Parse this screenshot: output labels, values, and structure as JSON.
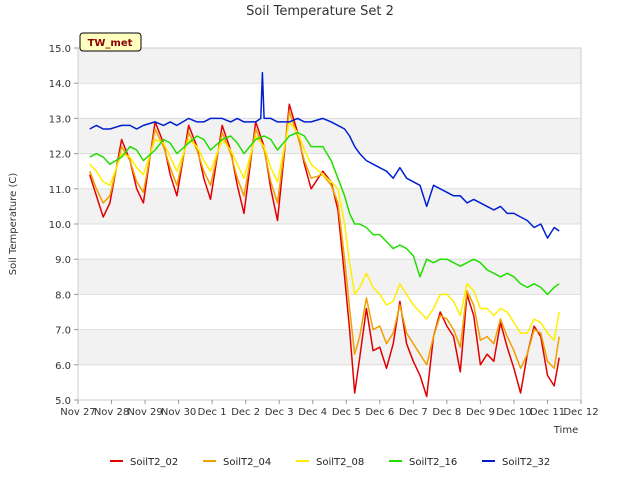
{
  "chart_data": {
    "type": "line",
    "title": "Soil Temperature Set 2",
    "xlabel": "Time",
    "ylabel": "Soil Temperature (C)",
    "station_badge": "TW_met",
    "ylim": [
      5.0,
      15.0
    ],
    "yticks": [
      "5.0",
      "6.0",
      "7.0",
      "8.0",
      "9.0",
      "10.0",
      "11.0",
      "12.0",
      "13.0",
      "14.0",
      "15.0"
    ],
    "xlim": [
      0,
      15
    ],
    "xticks": [
      "Nov 27",
      "Nov 28",
      "Nov 29",
      "Nov 30",
      "Dec 1",
      "Dec 2",
      "Dec 3",
      "Dec 4",
      "Dec 5",
      "Dec 6",
      "Dec 7",
      "Dec 8",
      "Dec 9",
      "Dec 10",
      "Dec 11",
      "Dec 12"
    ],
    "grid": "horizontal bands",
    "legend_position": "bottom",
    "series": [
      {
        "name": "SoilT2_02",
        "color": "#e00000",
        "x": [
          0.35,
          0.55,
          0.75,
          0.95,
          1.3,
          1.55,
          1.75,
          1.95,
          2.3,
          2.55,
          2.75,
          2.95,
          3.3,
          3.55,
          3.75,
          3.95,
          4.3,
          4.55,
          4.75,
          4.95,
          5.3,
          5.55,
          5.75,
          5.95,
          6.3,
          6.55,
          6.75,
          6.95,
          7.3,
          7.55,
          7.75,
          7.95,
          8.1,
          8.25,
          8.4,
          8.6,
          8.8,
          9.0,
          9.2,
          9.4,
          9.6,
          9.8,
          10.0,
          10.2,
          10.4,
          10.6,
          10.8,
          11.0,
          11.2,
          11.4,
          11.6,
          11.8,
          12.0,
          12.2,
          12.4,
          12.6,
          12.8,
          13.0,
          13.2,
          13.4,
          13.6,
          13.8,
          14.0,
          14.2,
          14.35
        ],
        "y": [
          11.4,
          10.8,
          10.2,
          10.6,
          12.4,
          11.8,
          11.0,
          10.6,
          12.9,
          12.3,
          11.4,
          10.8,
          12.8,
          12.2,
          11.3,
          10.7,
          12.8,
          12.1,
          11.1,
          10.3,
          12.9,
          12.2,
          11.0,
          10.1,
          13.4,
          12.6,
          11.7,
          11.0,
          11.5,
          11.2,
          10.4,
          8.5,
          7.0,
          5.2,
          6.2,
          7.6,
          6.4,
          6.5,
          5.9,
          6.6,
          7.8,
          6.6,
          6.1,
          5.7,
          5.1,
          6.8,
          7.5,
          7.1,
          6.8,
          5.8,
          8.0,
          7.4,
          6.0,
          6.3,
          6.1,
          7.2,
          6.5,
          5.9,
          5.2,
          6.3,
          7.1,
          6.8,
          5.7,
          5.4,
          6.2
        ]
      },
      {
        "name": "SoilT2_04",
        "color": "#f0a000",
        "x": [
          0.35,
          0.55,
          0.75,
          0.95,
          1.3,
          1.55,
          1.75,
          1.95,
          2.3,
          2.55,
          2.75,
          2.95,
          3.3,
          3.55,
          3.75,
          3.95,
          4.3,
          4.55,
          4.75,
          4.95,
          5.3,
          5.55,
          5.75,
          5.95,
          6.3,
          6.55,
          6.75,
          6.95,
          7.3,
          7.55,
          7.75,
          7.95,
          8.1,
          8.25,
          8.4,
          8.6,
          8.8,
          9.0,
          9.2,
          9.4,
          9.6,
          9.8,
          10.0,
          10.2,
          10.4,
          10.6,
          10.8,
          11.0,
          11.2,
          11.4,
          11.6,
          11.8,
          12.0,
          12.2,
          12.4,
          12.6,
          12.8,
          13.0,
          13.2,
          13.4,
          13.6,
          13.8,
          14.0,
          14.2,
          14.35
        ],
        "y": [
          11.5,
          11.0,
          10.6,
          10.8,
          12.2,
          11.8,
          11.2,
          10.9,
          12.7,
          12.2,
          11.6,
          11.1,
          12.6,
          12.1,
          11.5,
          11.1,
          12.6,
          12.0,
          11.3,
          10.8,
          12.7,
          12.1,
          11.2,
          10.6,
          13.2,
          12.5,
          11.8,
          11.3,
          11.4,
          11.1,
          10.6,
          9.0,
          7.6,
          6.3,
          6.8,
          7.9,
          7.0,
          7.1,
          6.6,
          6.9,
          7.7,
          6.9,
          6.6,
          6.3,
          6.0,
          6.8,
          7.4,
          7.3,
          7.0,
          6.5,
          8.1,
          7.7,
          6.7,
          6.8,
          6.6,
          7.3,
          6.8,
          6.4,
          5.9,
          6.3,
          7.0,
          6.9,
          6.1,
          5.9,
          6.8
        ]
      },
      {
        "name": "SoilT2_08",
        "color": "#ffee00",
        "x": [
          0.35,
          0.55,
          0.75,
          0.95,
          1.3,
          1.55,
          1.75,
          1.95,
          2.3,
          2.55,
          2.75,
          2.95,
          3.3,
          3.55,
          3.75,
          3.95,
          4.3,
          4.55,
          4.75,
          4.95,
          5.3,
          5.55,
          5.75,
          5.95,
          6.3,
          6.55,
          6.75,
          6.95,
          7.3,
          7.55,
          7.75,
          7.95,
          8.1,
          8.25,
          8.4,
          8.6,
          8.8,
          9.0,
          9.2,
          9.4,
          9.6,
          9.8,
          10.0,
          10.2,
          10.4,
          10.6,
          10.8,
          11.0,
          11.2,
          11.4,
          11.6,
          11.8,
          12.0,
          12.2,
          12.4,
          12.6,
          12.8,
          13.0,
          13.2,
          13.4,
          13.6,
          13.8,
          14.0,
          14.2,
          14.35
        ],
        "y": [
          11.7,
          11.5,
          11.2,
          11.1,
          12.0,
          11.9,
          11.6,
          11.4,
          12.4,
          12.3,
          11.9,
          11.5,
          12.4,
          12.2,
          11.8,
          11.5,
          12.4,
          12.1,
          11.7,
          11.3,
          12.5,
          12.2,
          11.6,
          11.2,
          12.9,
          12.6,
          12.1,
          11.7,
          11.4,
          11.2,
          11.0,
          10.0,
          8.9,
          8.0,
          8.2,
          8.6,
          8.2,
          8.0,
          7.7,
          7.8,
          8.3,
          8.0,
          7.7,
          7.5,
          7.3,
          7.6,
          8.0,
          8.0,
          7.8,
          7.4,
          8.3,
          8.1,
          7.6,
          7.6,
          7.4,
          7.6,
          7.5,
          7.2,
          6.9,
          6.9,
          7.3,
          7.2,
          6.9,
          6.7,
          7.5
        ]
      },
      {
        "name": "SoilT2_16",
        "color": "#22dd00",
        "x": [
          0.35,
          0.55,
          0.75,
          0.95,
          1.3,
          1.55,
          1.75,
          1.95,
          2.3,
          2.55,
          2.75,
          2.95,
          3.3,
          3.55,
          3.75,
          3.95,
          4.3,
          4.55,
          4.75,
          4.95,
          5.3,
          5.55,
          5.75,
          5.95,
          6.3,
          6.55,
          6.75,
          6.95,
          7.3,
          7.55,
          7.75,
          7.95,
          8.1,
          8.25,
          8.4,
          8.6,
          8.8,
          9.0,
          9.2,
          9.4,
          9.6,
          9.8,
          10.0,
          10.2,
          10.4,
          10.6,
          10.8,
          11.0,
          11.2,
          11.4,
          11.6,
          11.8,
          12.0,
          12.2,
          12.4,
          12.6,
          12.8,
          13.0,
          13.2,
          13.4,
          13.6,
          13.8,
          14.0,
          14.2,
          14.35
        ],
        "y": [
          11.9,
          12.0,
          11.9,
          11.7,
          11.9,
          12.2,
          12.1,
          11.8,
          12.1,
          12.4,
          12.3,
          12.0,
          12.3,
          12.5,
          12.4,
          12.1,
          12.4,
          12.5,
          12.3,
          12.0,
          12.4,
          12.5,
          12.4,
          12.1,
          12.5,
          12.6,
          12.5,
          12.2,
          12.2,
          11.8,
          11.3,
          10.8,
          10.3,
          10.0,
          10.0,
          9.9,
          9.7,
          9.7,
          9.5,
          9.3,
          9.4,
          9.3,
          9.1,
          8.5,
          9.0,
          8.9,
          9.0,
          9.0,
          8.9,
          8.8,
          8.9,
          9.0,
          8.9,
          8.7,
          8.6,
          8.5,
          8.6,
          8.5,
          8.3,
          8.2,
          8.3,
          8.2,
          8.0,
          8.2,
          8.3
        ]
      },
      {
        "name": "SoilT2_32",
        "color": "#0020d0",
        "x": [
          0.35,
          0.55,
          0.75,
          0.95,
          1.3,
          1.55,
          1.75,
          1.95,
          2.3,
          2.55,
          2.75,
          2.95,
          3.3,
          3.55,
          3.75,
          3.95,
          4.3,
          4.55,
          4.75,
          4.95,
          5.3,
          5.45,
          5.5,
          5.55,
          5.75,
          5.95,
          6.3,
          6.55,
          6.75,
          6.95,
          7.3,
          7.55,
          7.75,
          7.95,
          8.1,
          8.25,
          8.4,
          8.6,
          8.8,
          9.0,
          9.2,
          9.4,
          9.6,
          9.8,
          10.0,
          10.2,
          10.4,
          10.6,
          10.8,
          11.0,
          11.2,
          11.4,
          11.6,
          11.8,
          12.0,
          12.2,
          12.4,
          12.6,
          12.8,
          13.0,
          13.2,
          13.4,
          13.6,
          13.8,
          14.0,
          14.2,
          14.35
        ],
        "y": [
          12.7,
          12.8,
          12.7,
          12.7,
          12.8,
          12.8,
          12.7,
          12.8,
          12.9,
          12.8,
          12.9,
          12.8,
          13.0,
          12.9,
          12.9,
          13.0,
          13.0,
          12.9,
          13.0,
          12.9,
          12.9,
          13.0,
          14.3,
          13.0,
          13.0,
          12.9,
          12.9,
          13.0,
          12.9,
          12.9,
          13.0,
          12.9,
          12.8,
          12.7,
          12.5,
          12.2,
          12.0,
          11.8,
          11.7,
          11.6,
          11.5,
          11.3,
          11.6,
          11.3,
          11.2,
          11.1,
          10.5,
          11.1,
          11.0,
          10.9,
          10.8,
          10.8,
          10.6,
          10.7,
          10.6,
          10.5,
          10.4,
          10.5,
          10.3,
          10.3,
          10.2,
          10.1,
          9.9,
          10.0,
          9.6,
          9.9,
          9.8
        ]
      }
    ]
  }
}
